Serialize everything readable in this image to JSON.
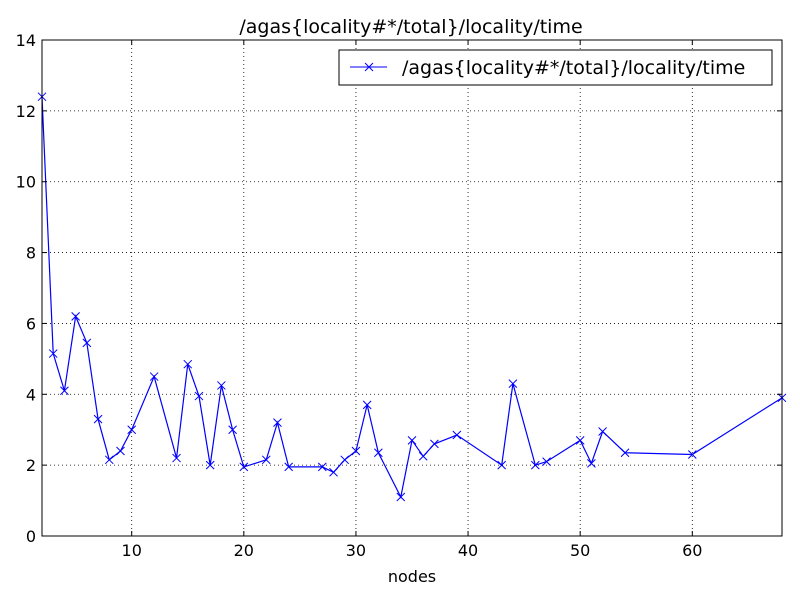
{
  "chart_data": {
    "type": "line",
    "title": "/agas{locality#*/total}/locality/time",
    "xlabel": "nodes",
    "ylabel": "",
    "xlim": [
      2,
      68
    ],
    "ylim": [
      0,
      14
    ],
    "xticks": [
      10,
      20,
      30,
      40,
      50,
      60
    ],
    "yticks": [
      0,
      2,
      4,
      6,
      8,
      10,
      12,
      14
    ],
    "grid": true,
    "legend": "top-right",
    "series": [
      {
        "name": "/agas{locality#*/total}/locality/time",
        "color": "#0000ff",
        "marker": "x",
        "x": [
          2,
          3,
          4,
          5,
          6,
          7,
          8,
          9,
          10,
          12,
          14,
          15,
          16,
          17,
          18,
          19,
          20,
          22,
          23,
          24,
          27,
          28,
          29,
          30,
          31,
          32,
          34,
          35,
          36,
          37,
          39,
          43,
          44,
          46,
          47,
          50,
          51,
          52,
          54,
          60,
          68
        ],
        "y": [
          12.4,
          5.15,
          4.1,
          6.2,
          5.45,
          3.3,
          2.15,
          2.4,
          3.0,
          4.5,
          2.2,
          4.85,
          3.95,
          2.0,
          4.25,
          3.0,
          1.95,
          2.15,
          3.2,
          1.95,
          1.95,
          1.8,
          2.15,
          2.4,
          3.7,
          2.35,
          1.1,
          2.7,
          2.25,
          2.6,
          2.85,
          2.0,
          4.3,
          2.0,
          2.1,
          2.7,
          2.05,
          2.95,
          2.35,
          2.3,
          3.9
        ]
      }
    ]
  }
}
